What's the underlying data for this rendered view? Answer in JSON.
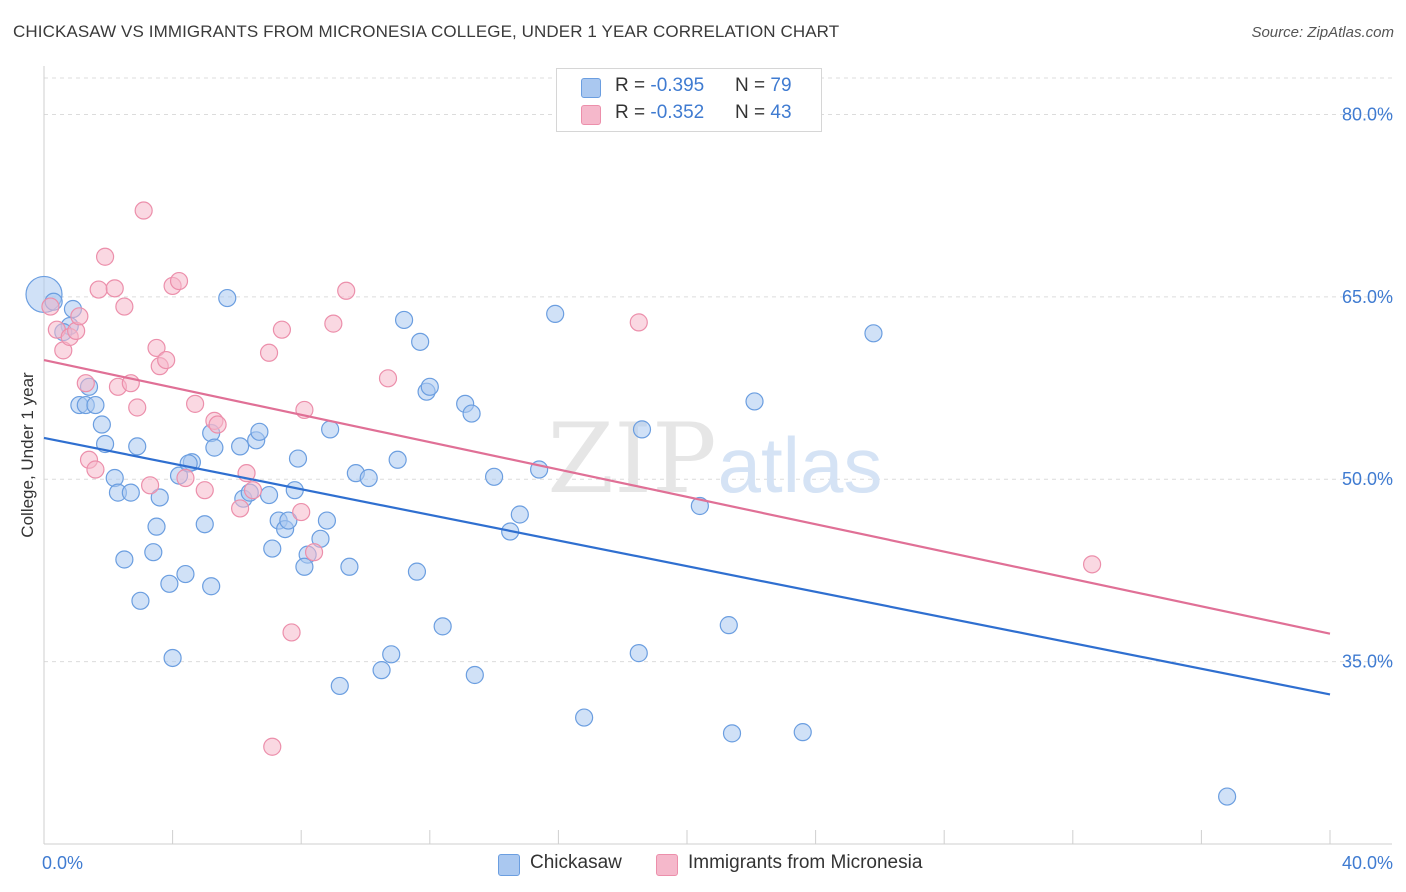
{
  "title": "CHICKASAW VS IMMIGRANTS FROM MICRONESIA COLLEGE, UNDER 1 YEAR CORRELATION CHART",
  "source": "Source: ZipAtlas.com",
  "watermark": {
    "zip": "ZIP",
    "atlas": "atlas"
  },
  "legend": [
    {
      "r_label": "R = ",
      "r_value": "-0.395",
      "n_label": "N = ",
      "n_value": "79",
      "color": "#aac8f0"
    },
    {
      "r_label": "R = ",
      "r_value": "-0.352",
      "n_label": "N = ",
      "n_value": "43",
      "color": "#f5b8cb"
    }
  ],
  "chart_data": {
    "type": "scatter",
    "xlabel": "",
    "ylabel": "College, Under 1 year",
    "xlim": [
      0,
      40
    ],
    "ylim": [
      20,
      83
    ],
    "x_ticks": [
      "0.0%",
      "40.0%"
    ],
    "y_ticks": [
      {
        "value": 35,
        "label": "35.0%"
      },
      {
        "value": 50,
        "label": "50.0%"
      },
      {
        "value": 65,
        "label": "65.0%"
      },
      {
        "value": 80,
        "label": "80.0%"
      }
    ],
    "grid": true,
    "legend_position": "top-center",
    "series": [
      {
        "name": "Chickasaw",
        "color": "#6b9ee0",
        "fill": "#aac8f0",
        "trend": {
          "x": [
            0,
            40
          ],
          "y": [
            53.4,
            32.3
          ],
          "color": "#2f6fd0"
        },
        "points": [
          [
            0.0,
            65.2
          ],
          [
            0.3,
            64.6
          ],
          [
            0.8,
            62.6
          ],
          [
            0.6,
            62.1
          ],
          [
            0.9,
            64.0
          ],
          [
            1.1,
            56.1
          ],
          [
            1.3,
            56.1
          ],
          [
            1.6,
            56.1
          ],
          [
            1.8,
            54.5
          ],
          [
            1.4,
            57.6
          ],
          [
            1.9,
            52.9
          ],
          [
            2.2,
            50.1
          ],
          [
            2.3,
            48.9
          ],
          [
            2.7,
            48.9
          ],
          [
            2.9,
            52.7
          ],
          [
            3.4,
            44.0
          ],
          [
            2.5,
            43.4
          ],
          [
            3.0,
            40.0
          ],
          [
            3.5,
            46.1
          ],
          [
            3.6,
            48.5
          ],
          [
            3.9,
            41.4
          ],
          [
            4.0,
            35.3
          ],
          [
            4.4,
            42.2
          ],
          [
            4.2,
            50.3
          ],
          [
            4.6,
            51.4
          ],
          [
            4.5,
            51.3
          ],
          [
            5.0,
            46.3
          ],
          [
            5.2,
            53.8
          ],
          [
            5.3,
            52.6
          ],
          [
            5.2,
            41.2
          ],
          [
            5.7,
            64.9
          ],
          [
            6.1,
            52.7
          ],
          [
            6.2,
            48.4
          ],
          [
            6.4,
            48.9
          ],
          [
            6.6,
            53.2
          ],
          [
            6.7,
            53.9
          ],
          [
            7.0,
            48.7
          ],
          [
            7.1,
            44.3
          ],
          [
            7.3,
            46.6
          ],
          [
            7.5,
            45.9
          ],
          [
            7.6,
            46.6
          ],
          [
            7.8,
            49.1
          ],
          [
            7.9,
            51.7
          ],
          [
            8.2,
            43.8
          ],
          [
            8.1,
            42.8
          ],
          [
            8.6,
            45.1
          ],
          [
            8.8,
            46.6
          ],
          [
            8.9,
            54.1
          ],
          [
            9.2,
            33.0
          ],
          [
            9.5,
            42.8
          ],
          [
            9.7,
            50.5
          ],
          [
            10.1,
            50.1
          ],
          [
            10.5,
            34.3
          ],
          [
            10.8,
            35.6
          ],
          [
            11.0,
            51.6
          ],
          [
            11.2,
            63.1
          ],
          [
            11.6,
            42.4
          ],
          [
            11.7,
            61.3
          ],
          [
            11.9,
            57.2
          ],
          [
            12.0,
            57.6
          ],
          [
            12.4,
            37.9
          ],
          [
            13.1,
            56.2
          ],
          [
            13.3,
            55.4
          ],
          [
            13.4,
            33.9
          ],
          [
            14.0,
            50.2
          ],
          [
            14.5,
            45.7
          ],
          [
            14.8,
            47.1
          ],
          [
            15.4,
            50.8
          ],
          [
            15.9,
            63.6
          ],
          [
            16.8,
            30.4
          ],
          [
            18.5,
            35.7
          ],
          [
            18.6,
            54.1
          ],
          [
            20.4,
            47.8
          ],
          [
            21.3,
            38.0
          ],
          [
            21.4,
            29.1
          ],
          [
            22.1,
            56.4
          ],
          [
            23.6,
            29.2
          ],
          [
            25.8,
            62.0
          ],
          [
            36.8,
            23.9
          ]
        ]
      },
      {
        "name": "Immigrants from Micronesia",
        "color": "#ec8fab",
        "fill": "#f5b8cb",
        "trend": {
          "x": [
            0,
            40
          ],
          "y": [
            59.8,
            37.3
          ],
          "color": "#e07096"
        },
        "points": [
          [
            0.2,
            64.2
          ],
          [
            0.4,
            62.3
          ],
          [
            0.6,
            60.6
          ],
          [
            0.8,
            61.7
          ],
          [
            1.0,
            62.2
          ],
          [
            1.1,
            63.4
          ],
          [
            1.3,
            57.9
          ],
          [
            1.4,
            51.6
          ],
          [
            1.6,
            50.8
          ],
          [
            1.7,
            65.6
          ],
          [
            1.9,
            68.3
          ],
          [
            2.2,
            65.7
          ],
          [
            2.3,
            57.6
          ],
          [
            2.5,
            64.2
          ],
          [
            2.7,
            57.9
          ],
          [
            2.9,
            55.9
          ],
          [
            3.1,
            72.1
          ],
          [
            3.3,
            49.5
          ],
          [
            3.5,
            60.8
          ],
          [
            3.6,
            59.3
          ],
          [
            3.8,
            59.8
          ],
          [
            4.0,
            65.9
          ],
          [
            4.2,
            66.3
          ],
          [
            4.4,
            50.1
          ],
          [
            4.7,
            56.2
          ],
          [
            5.0,
            49.1
          ],
          [
            5.3,
            54.8
          ],
          [
            5.4,
            54.5
          ],
          [
            6.1,
            47.6
          ],
          [
            6.3,
            50.5
          ],
          [
            6.5,
            49.1
          ],
          [
            7.0,
            60.4
          ],
          [
            7.1,
            28.0
          ],
          [
            7.4,
            62.3
          ],
          [
            7.7,
            37.4
          ],
          [
            8.0,
            47.3
          ],
          [
            8.1,
            55.7
          ],
          [
            8.4,
            44.0
          ],
          [
            9.0,
            62.8
          ],
          [
            9.4,
            65.5
          ],
          [
            10.7,
            58.3
          ],
          [
            18.5,
            62.9
          ],
          [
            32.6,
            43.0
          ]
        ]
      }
    ]
  },
  "bottom_legend": [
    {
      "label": "Chickasaw"
    },
    {
      "label": "Immigrants from Micronesia"
    }
  ]
}
